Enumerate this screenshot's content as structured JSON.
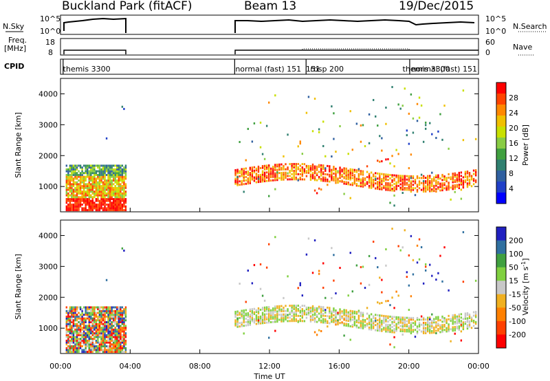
{
  "header": {
    "station": "Buckland Park (fitACF)",
    "beam": "Beam 13",
    "date": "19/Dec/2015"
  },
  "left_labels": {
    "nsky": "N.Sky",
    "freq_line1": "Freq.",
    "freq_line2": "[MHz]",
    "cpid": "CPID"
  },
  "right_labels": {
    "nsearch": "N.Search",
    "nave": "Nave"
  },
  "top_axes": {
    "noise_ticks_left": [
      "10^5",
      "10^0"
    ],
    "noise_ticks_right": [
      "10^5",
      "10^0"
    ],
    "freq_ticks_left": [
      "18",
      "8"
    ],
    "nave_ticks_right": [
      "60",
      "0"
    ]
  },
  "cpid_labels": [
    {
      "text": "themis 3300",
      "hour": 0.1
    },
    {
      "text": "normal (fast) 151",
      "hour": 10.0
    },
    {
      "text": "151",
      "hour": 14.05
    },
    {
      "text": "rbsp 200",
      "hour": 14.3
    },
    {
      "text": "themis 3300",
      "hour": 19.6
    },
    {
      "text": "normal (fast) 151",
      "hour": 20.1
    }
  ],
  "chart_data": [
    {
      "type": "heatmap",
      "name": "Power",
      "xlabel": "",
      "ylabel": "Slant Range [km]",
      "xlim": [
        0,
        24
      ],
      "ylim": [
        180,
        4500
      ],
      "yticks": [
        1000,
        2000,
        3000,
        4000
      ],
      "colorbar": {
        "label": "Power [dB]",
        "ticks": [
          "28",
          "24",
          "20",
          "16",
          "12",
          "8",
          "4"
        ],
        "colors": [
          "#ff0000",
          "#ff4400",
          "#ff8800",
          "#f0c000",
          "#c8e000",
          "#88cc44",
          "#40a040",
          "#308070",
          "#3060a0",
          "#2040c8",
          "#0000ff"
        ]
      }
    },
    {
      "type": "heatmap",
      "name": "Velocity",
      "xlabel": "Time UT",
      "ylabel": "Slant Range [km]",
      "xlim": [
        0,
        24
      ],
      "ylim": [
        180,
        4500
      ],
      "yticks": [
        1000,
        2000,
        3000,
        4000
      ],
      "xticks": [
        "00:00",
        "04:00",
        "08:00",
        "12:00",
        "16:00",
        "20:00",
        "00:00"
      ],
      "colorbar": {
        "label": "Velocity [m s^-1]",
        "ticks": [
          "200",
          "100",
          "50",
          "15",
          "-15",
          "-50",
          "-100",
          "-200"
        ],
        "colors": [
          "#2020c0",
          "#3070a0",
          "#40a040",
          "#80d040",
          "#c8c8c8",
          "#f0b020",
          "#ff8000",
          "#ff4000",
          "#ff0000"
        ]
      }
    }
  ]
}
